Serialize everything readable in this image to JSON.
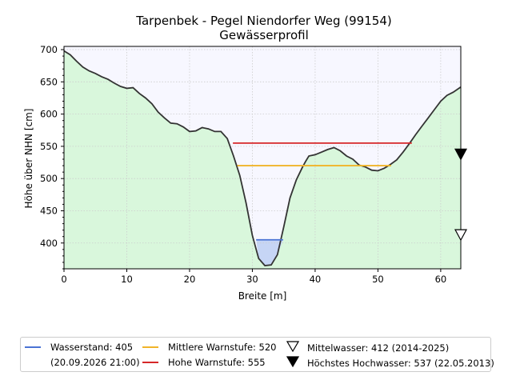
{
  "chart_data": {
    "type": "area",
    "title": "Tarpenbek - Pegel Niendorfer Weg (99154)",
    "subtitle": "Gewässerprofil",
    "xlabel": "Breite [m]",
    "ylabel": "Höhe über NHN [cm]",
    "xlim": [
      0,
      63.2
    ],
    "ylim": [
      360,
      705
    ],
    "xticks": [
      0,
      10,
      20,
      30,
      40,
      50,
      60
    ],
    "yticks": [
      400,
      450,
      500,
      550,
      600,
      650,
      700
    ],
    "grid": true,
    "legend_position": "bottom",
    "profile": {
      "x": [
        0,
        1,
        2,
        3,
        4,
        5,
        6,
        7,
        8,
        9,
        10,
        11,
        12,
        13,
        14,
        15,
        16,
        17,
        18,
        19,
        20,
        21,
        22,
        23,
        24,
        25,
        26,
        27,
        28,
        29,
        30,
        31,
        32,
        33,
        34,
        35,
        36,
        37,
        38,
        38.5,
        39,
        40,
        41,
        42,
        43,
        44,
        45,
        46,
        47,
        48,
        49,
        50,
        51,
        52,
        53,
        54,
        55,
        56,
        57,
        58,
        59,
        60,
        61,
        62,
        63.2
      ],
      "y": [
        698,
        692,
        682,
        673,
        667,
        663,
        658,
        654,
        648,
        643,
        640,
        641,
        632,
        625,
        616,
        603,
        594,
        586,
        585,
        580,
        573,
        574,
        579,
        577,
        573,
        573,
        562,
        535,
        505,
        462,
        412,
        376,
        365,
        366,
        382,
        425,
        470,
        498,
        518,
        527,
        535,
        537,
        541,
        545,
        548,
        543,
        535,
        530,
        521,
        518,
        513,
        512,
        516,
        522,
        529,
        541,
        554,
        568,
        581,
        594,
        607,
        620,
        629,
        634,
        642
      ]
    },
    "series": [
      {
        "name": "Wasserstand: 405",
        "x": [
          30.6,
          34.9
        ],
        "y": [
          405,
          405
        ],
        "color": "#4a73d4"
      },
      {
        "name": "Mittlere Warnstufe: 520",
        "x": [
          27.6,
          52.1
        ],
        "y": [
          520,
          520
        ],
        "color": "#f0b429"
      },
      {
        "name": "Hohe Warnstufe: 555",
        "x": [
          26.9,
          55.4
        ],
        "y": [
          555,
          555
        ],
        "color": "#d62728"
      }
    ],
    "markers": [
      {
        "name": "Mittelwasser: 412 (2014-2025)",
        "x": 63.2,
        "y": 412,
        "style": "triangle-down-open"
      },
      {
        "name": "Höchstes Hochwasser: 537 (22.05.2013)",
        "x": 63.2,
        "y": 537,
        "style": "triangle-down-filled"
      }
    ],
    "colors": {
      "ground_fill": "#d9f7dc",
      "sky_fill": "#f7f7ff",
      "water_fill": "#c6d5f5",
      "profile_line": "#333333"
    }
  },
  "legend": {
    "water_label": "Wasserstand: 405",
    "water_date": "(20.09.2026 21:00)",
    "mid_label": "Mittlere Warnstufe: 520",
    "high_label": "Hohe Warnstufe: 555",
    "mean_label": "Mittelwasser: 412 (2014-2025)",
    "max_label": "Höchstes Hochwasser: 537 (22.05.2013)"
  }
}
